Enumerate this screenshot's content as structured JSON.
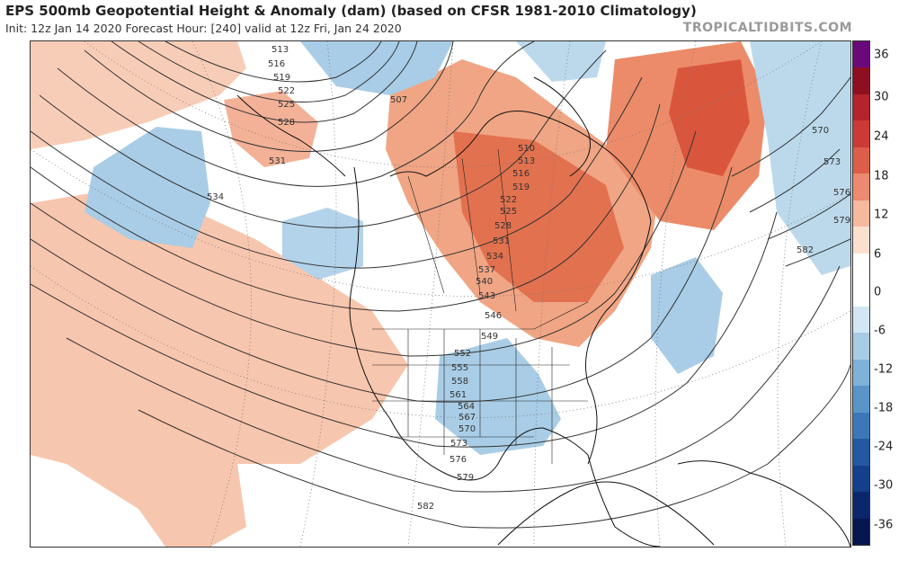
{
  "header": {
    "title": "EPS 500mb Geopotential Height & Anomaly (dam) (based on CFSR 1981-2010 Climatology)",
    "subtitle": "Init: 12z Jan 14 2020   Forecast Hour: [240]   valid at 12z Fri, Jan 24 2020",
    "credit": "TROPICALTIDBITS.COM"
  },
  "colorbar": {
    "labels": [
      "36",
      "30",
      "24",
      "18",
      "12",
      "6",
      "0",
      "-6",
      "-12",
      "-18",
      "-24",
      "-30",
      "-36"
    ],
    "colors": [
      "#6a0a7a",
      "#8e1020",
      "#b3242b",
      "#cc3a35",
      "#dc5e48",
      "#eb8a6e",
      "#f5b99e",
      "#fbe0d0",
      "#ffffff",
      "#ffffff",
      "#d3e6f3",
      "#a7cde6",
      "#7fb2d9",
      "#5a95c9",
      "#3c78b8",
      "#2359a3",
      "#143f8a",
      "#0a276d",
      "#06164e"
    ]
  },
  "contours": [
    {
      "label": "513"
    },
    {
      "label": "516"
    },
    {
      "label": "519"
    },
    {
      "label": "522"
    },
    {
      "label": "525"
    },
    {
      "label": "528"
    },
    {
      "label": "531"
    },
    {
      "label": "534"
    },
    {
      "label": "507"
    },
    {
      "label": "510"
    },
    {
      "label": "513"
    },
    {
      "label": "516"
    },
    {
      "label": "519"
    },
    {
      "label": "522"
    },
    {
      "label": "525"
    },
    {
      "label": "528"
    },
    {
      "label": "531"
    },
    {
      "label": "534"
    },
    {
      "label": "537"
    },
    {
      "label": "540"
    },
    {
      "label": "543"
    },
    {
      "label": "546"
    },
    {
      "label": "549"
    },
    {
      "label": "552"
    },
    {
      "label": "555"
    },
    {
      "label": "558"
    },
    {
      "label": "561"
    },
    {
      "label": "564"
    },
    {
      "label": "567"
    },
    {
      "label": "570"
    },
    {
      "label": "573"
    },
    {
      "label": "576"
    },
    {
      "label": "579"
    },
    {
      "label": "582"
    },
    {
      "label": "570"
    },
    {
      "label": "573"
    },
    {
      "label": "576"
    },
    {
      "label": "579"
    },
    {
      "label": "582"
    },
    {
      "label": "582"
    }
  ]
}
